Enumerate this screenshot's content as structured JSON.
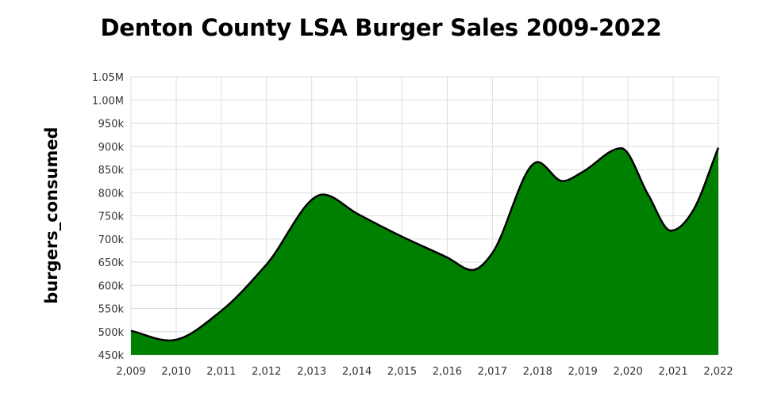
{
  "chart_data": {
    "type": "area",
    "title": "Denton County LSA Burger Sales 2009-2022",
    "xlabel": "",
    "ylabel": "burgers_consumed",
    "x": [
      2009,
      2010,
      2011,
      2012,
      2013,
      2014,
      2015,
      2016,
      2017,
      2018,
      2019,
      2020,
      2021,
      2022
    ],
    "x_tick_labels": [
      "2,009",
      "2,010",
      "2,011",
      "2,012",
      "2,013",
      "2,014",
      "2,015",
      "2,016",
      "2,017",
      "2,018",
      "2,019",
      "2,020",
      "2,021",
      "2,022"
    ],
    "x_points": [
      2009,
      2009.85,
      2011,
      2012,
      2013.25,
      2014,
      2015,
      2016,
      2016.55,
      2017,
      2018,
      2018.55,
      2019,
      2019.85,
      2020.45,
      2020.95,
      2021.45,
      2022
    ],
    "y_points": [
      502000,
      481000,
      545000,
      645000,
      796000,
      755000,
      705000,
      660000,
      633000,
      670000,
      866000,
      825000,
      845000,
      896000,
      795000,
      718000,
      763000,
      897000
    ],
    "ylim": [
      450000,
      1050000
    ],
    "y_ticks": [
      450000,
      500000,
      550000,
      600000,
      650000,
      700000,
      750000,
      800000,
      850000,
      900000,
      950000,
      1000000,
      1050000
    ],
    "y_tick_labels": [
      "450k",
      "500k",
      "550k",
      "600k",
      "650k",
      "700k",
      "750k",
      "800k",
      "850k",
      "900k",
      "950k",
      "1.00M",
      "1.05M"
    ],
    "grid": true,
    "legend": "none",
    "fill_color": "#008000",
    "line_color": "#000000",
    "grid_color": "#dddddd"
  }
}
